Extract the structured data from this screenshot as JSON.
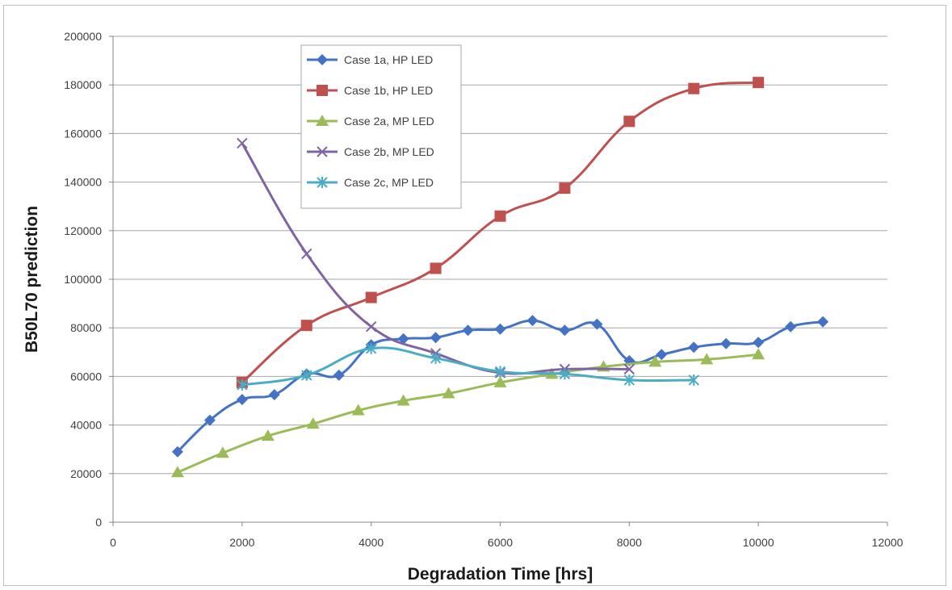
{
  "chart_data": {
    "type": "line",
    "title": "",
    "xlabel": "Degradation Time [hrs]",
    "ylabel": "B50L70 prediction",
    "xlim": [
      0,
      12000
    ],
    "ylim": [
      0,
      200000
    ],
    "xticks": [
      0,
      2000,
      4000,
      6000,
      8000,
      10000,
      12000
    ],
    "yticks": [
      0,
      20000,
      40000,
      60000,
      80000,
      100000,
      120000,
      140000,
      160000,
      180000,
      200000
    ],
    "grid": "horizontal",
    "legend_position": "top-left",
    "series": [
      {
        "name": "Case 1a, HP LED",
        "color": "#4472c4",
        "marker": "diamond",
        "x": [
          1000,
          1500,
          2000,
          2500,
          3000,
          3500,
          4000,
          4500,
          5000,
          5500,
          6000,
          6500,
          7000,
          7500,
          8000,
          8500,
          9000,
          9500,
          10000,
          10500,
          11000
        ],
        "y": [
          29000,
          42000,
          50500,
          52500,
          61000,
          60500,
          73000,
          75500,
          76000,
          79000,
          79500,
          83000,
          79000,
          81500,
          66500,
          69000,
          72000,
          73500,
          74000,
          80500,
          82500
        ]
      },
      {
        "name": "Case 1b, HP LED",
        "color": "#c0504d",
        "marker": "square",
        "x": [
          2000,
          3000,
          4000,
          5000,
          6000,
          7000,
          8000,
          9000,
          10000
        ],
        "y": [
          57500,
          81000,
          92500,
          104500,
          126000,
          137500,
          165000,
          178500,
          181000
        ]
      },
      {
        "name": "Case 2a, MP LED",
        "color": "#9bbb59",
        "marker": "triangle",
        "x": [
          1000,
          1700,
          2400,
          3100,
          3800,
          4500,
          5200,
          6000,
          6800,
          7600,
          8400,
          9200,
          10000
        ],
        "y": [
          20500,
          28500,
          35500,
          40500,
          46000,
          50000,
          53000,
          57500,
          61000,
          64000,
          66000,
          67000,
          69000
        ]
      },
      {
        "name": "Case 2b, MP LED",
        "color": "#8064a2",
        "marker": "x",
        "x": [
          2000,
          3000,
          4000,
          5000,
          6000,
          7000,
          8000
        ],
        "y": [
          156000,
          110500,
          80500,
          69500,
          61500,
          63000,
          63000
        ]
      },
      {
        "name": "Case 2c, MP LED",
        "color": "#4bacc6",
        "marker": "star",
        "x": [
          2000,
          3000,
          4000,
          5000,
          6000,
          7000,
          8000,
          9000
        ],
        "y": [
          56500,
          60500,
          71500,
          67500,
          62000,
          61000,
          58500,
          58500
        ]
      }
    ]
  }
}
